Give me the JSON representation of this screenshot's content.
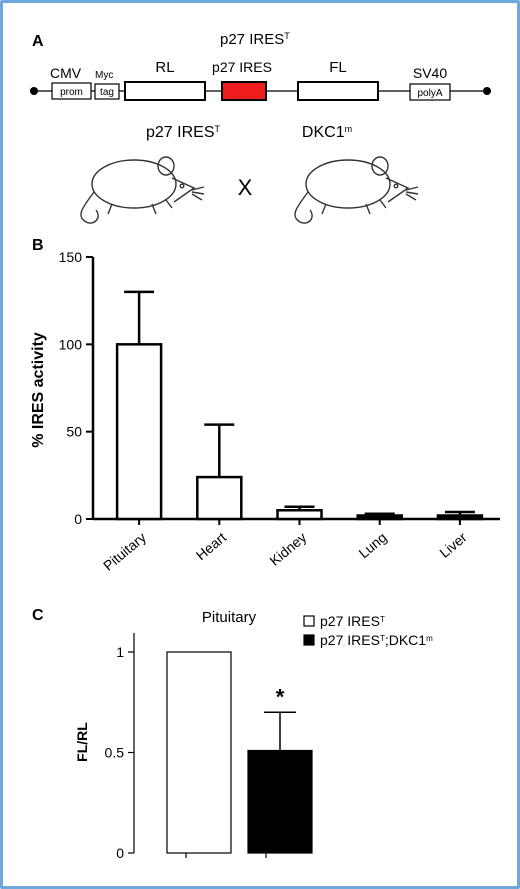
{
  "panel_a": {
    "label": "A",
    "construct_title": "p27 IRES",
    "construct_title_sup": "T",
    "elements": [
      {
        "top": "CMV",
        "inner": "prom"
      },
      {
        "top": "Myc",
        "inner": "tag"
      },
      {
        "top": "RL",
        "inner": ""
      },
      {
        "top": "p27 IRES",
        "inner": ""
      },
      {
        "top": "FL",
        "inner": ""
      },
      {
        "top": "SV40",
        "inner": "polyA"
      }
    ],
    "highlight_color": "#ee1c1c",
    "cross": {
      "left": "p27 IRES",
      "left_sup": "T",
      "symbol": "X",
      "right": "DKC1",
      "right_sup": "m"
    }
  },
  "panel_b": {
    "label": "B",
    "ylabel": "% IRES activity",
    "y_ticks": [
      "0",
      "50",
      "100",
      "150"
    ]
  },
  "panel_c": {
    "label": "C",
    "title": "Pituitary",
    "ylabel": "FL/RL",
    "y_ticks": [
      "0",
      "0.5",
      "1"
    ],
    "legend": [
      {
        "text": "p27 IRES",
        "sup": "T",
        "suffix": ""
      },
      {
        "text": "p27 IRES",
        "sup": "T",
        "suffix": ";DKC1",
        "sup2": "m"
      }
    ],
    "significance": "*"
  },
  "chart_data": [
    {
      "type": "bar",
      "categories": [
        "Pituitary",
        "Heart",
        "Kidney",
        "Lung",
        "Liver"
      ],
      "values": [
        100,
        24,
        5,
        2,
        2
      ],
      "error_upper": [
        30,
        30,
        2,
        1,
        2
      ],
      "ylabel": "% IRES activity",
      "ylim": [
        0,
        150
      ],
      "y_ticks": [
        0,
        50,
        100,
        150
      ],
      "bar_fill": [
        "white",
        "white",
        "white",
        "black",
        "black"
      ]
    },
    {
      "type": "bar",
      "title": "Pituitary",
      "categories": [
        "p27 IRES T",
        "p27 IRES T;DKC1 m"
      ],
      "values": [
        1.0,
        0.51
      ],
      "error_upper": [
        0,
        0.19
      ],
      "ylabel": "FL/RL",
      "ylim": [
        0,
        1.2
      ],
      "y_ticks": [
        0,
        0.5,
        1
      ],
      "bar_fill": [
        "white",
        "black"
      ],
      "legend_position": "top-right"
    }
  ]
}
